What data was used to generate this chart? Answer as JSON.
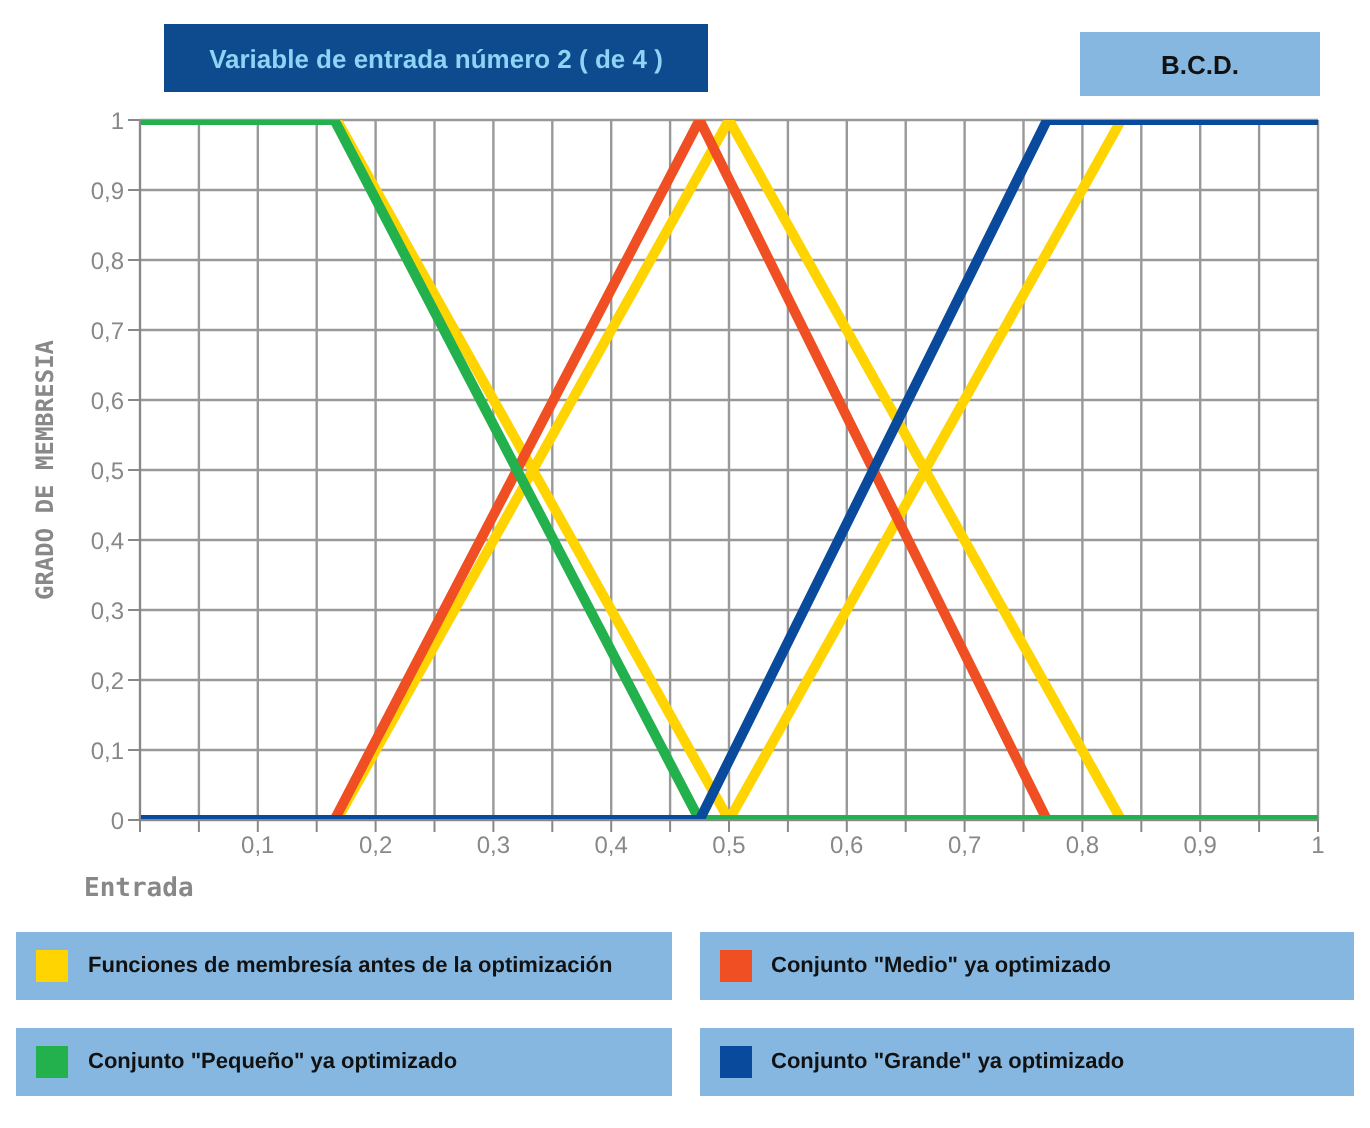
{
  "chart_data": {
    "type": "line",
    "title": "Variable de entrada número 2 ( de 4 )",
    "annotations": [
      "B.C.D."
    ],
    "xlabel": "Entrada",
    "ylabel": "GRADO DE MEMBRESIA",
    "xlim": [
      0,
      1
    ],
    "ylim": [
      0,
      1
    ],
    "xticks": [
      {
        "value": 0,
        "label": null
      },
      {
        "value": 0.05,
        "label": null
      },
      {
        "value": 0.1,
        "label": "0,1"
      },
      {
        "value": 0.15,
        "label": null
      },
      {
        "value": 0.2,
        "label": "0,2"
      },
      {
        "value": 0.25,
        "label": null
      },
      {
        "value": 0.3,
        "label": "0,3"
      },
      {
        "value": 0.35,
        "label": null
      },
      {
        "value": 0.4,
        "label": "0,4"
      },
      {
        "value": 0.45,
        "label": null
      },
      {
        "value": 0.5,
        "label": "0,5"
      },
      {
        "value": 0.55,
        "label": null
      },
      {
        "value": 0.6,
        "label": "0,6"
      },
      {
        "value": 0.65,
        "label": null
      },
      {
        "value": 0.7,
        "label": "0,7"
      },
      {
        "value": 0.75,
        "label": null
      },
      {
        "value": 0.8,
        "label": "0,8"
      },
      {
        "value": 0.85,
        "label": null
      },
      {
        "value": 0.9,
        "label": "0,9"
      },
      {
        "value": 0.95,
        "label": null
      },
      {
        "value": 1,
        "label": "1"
      }
    ],
    "yticks": [
      0,
      {
        "value": 0.1,
        "label": "0,1"
      },
      {
        "value": 0.2,
        "label": "0,2"
      },
      {
        "value": 0.3,
        "label": "0,3"
      },
      {
        "value": 0.4,
        "label": "0,4"
      },
      {
        "value": 0.5,
        "label": "0,5"
      },
      {
        "value": 0.6,
        "label": "0,6"
      },
      {
        "value": 0.7,
        "label": "0,7"
      },
      {
        "value": 0.8,
        "label": "0,8"
      },
      {
        "value": 0.9,
        "label": "0,9"
      },
      1
    ],
    "grid": true,
    "legend": "bottom",
    "marker": "none",
    "line_style": "solid",
    "series": [
      {
        "name": "Funciones de membresía antes de la optimización",
        "color": "#ffd400",
        "x": [
          0.167,
          0.5
        ],
        "values": [
          1,
          0
        ]
      },
      {
        "color": "#ffd400",
        "x": [
          0.167,
          0.5,
          0.833
        ],
        "values": [
          0,
          1,
          0
        ]
      },
      {
        "color": "#ffd400",
        "x": [
          0.5,
          0.833
        ],
        "values": [
          0,
          1
        ]
      },
      {
        "name": "Conjunto \"Medio\"  ya optimizado",
        "color": "#f04e23",
        "x": [
          0,
          0.165,
          0.475,
          0.77
        ],
        "values": [
          0,
          0,
          1,
          0
        ]
      },
      {
        "name": "Conjunto \"Pequeño\"  ya optimizado",
        "color": "#22b14c",
        "x": [
          0,
          0.165,
          0.475,
          1
        ],
        "values": [
          1,
          1,
          0,
          0
        ]
      },
      {
        "name": "Conjunto \"Grande\"  ya optimizado",
        "color": "#0a4a9c",
        "x": [
          0,
          0.475,
          0.77,
          1
        ],
        "values": [
          0,
          0,
          1,
          1
        ]
      }
    ]
  }
}
